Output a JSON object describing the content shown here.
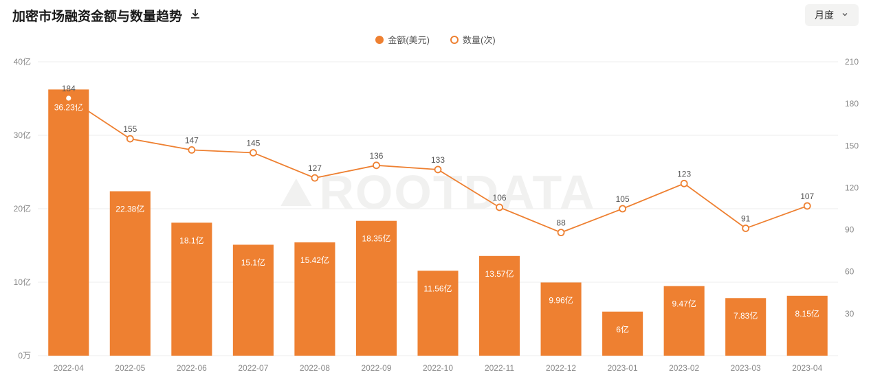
{
  "title": "加密市场融资金额与数量趋势",
  "period_selector": {
    "label": "月度"
  },
  "legend": {
    "bar_label": "金额(美元)",
    "line_label": "数量(次)"
  },
  "watermark": "ROOTDATA",
  "chart": {
    "type": "bar+line",
    "categories": [
      "2022-04",
      "2022-05",
      "2022-06",
      "2022-07",
      "2022-08",
      "2022-09",
      "2022-10",
      "2022-11",
      "2022-12",
      "2023-01",
      "2023-02",
      "2023-03",
      "2023-04"
    ],
    "bar_values": [
      36.23,
      22.38,
      18.1,
      15.1,
      15.42,
      18.35,
      11.56,
      13.57,
      9.96,
      6,
      9.47,
      7.83,
      8.15
    ],
    "bar_labels": [
      "36.23亿",
      "22.38亿",
      "18.1亿",
      "15.1亿",
      "15.42亿",
      "18.35亿",
      "11.56亿",
      "13.57亿",
      "9.96亿",
      "6亿",
      "9.47亿",
      "7.83亿",
      "8.15亿"
    ],
    "line_values": [
      184,
      155,
      147,
      145,
      127,
      136,
      133,
      106,
      88,
      105,
      123,
      91,
      107
    ],
    "line_labels": [
      "184",
      "155",
      "147",
      "145",
      "127",
      "136",
      "133",
      "106",
      "88",
      "105",
      "123",
      "91",
      "107"
    ],
    "bar_color": "#ee8031",
    "line_color": "#ee8031",
    "line_marker_fill": "#ffffff",
    "line_marker_stroke": "#ee8031",
    "bar_label_color": "#ffffff",
    "line_label_color": "#555555",
    "axis_label_color": "#888888",
    "grid_color": "#eeeeee",
    "left_axis": {
      "min": 0,
      "max": 40,
      "ticks": [
        0,
        10,
        20,
        30,
        40
      ],
      "tick_labels": [
        "0万",
        "10亿",
        "20亿",
        "30亿",
        "40亿"
      ]
    },
    "right_axis": {
      "min": 0,
      "max": 210,
      "ticks": [
        30,
        60,
        90,
        120,
        150,
        180,
        210
      ],
      "tick_labels": [
        "30",
        "60",
        "90",
        "120",
        "150",
        "180",
        "210"
      ]
    },
    "bar_width_ratio": 0.66,
    "background": "#ffffff"
  }
}
